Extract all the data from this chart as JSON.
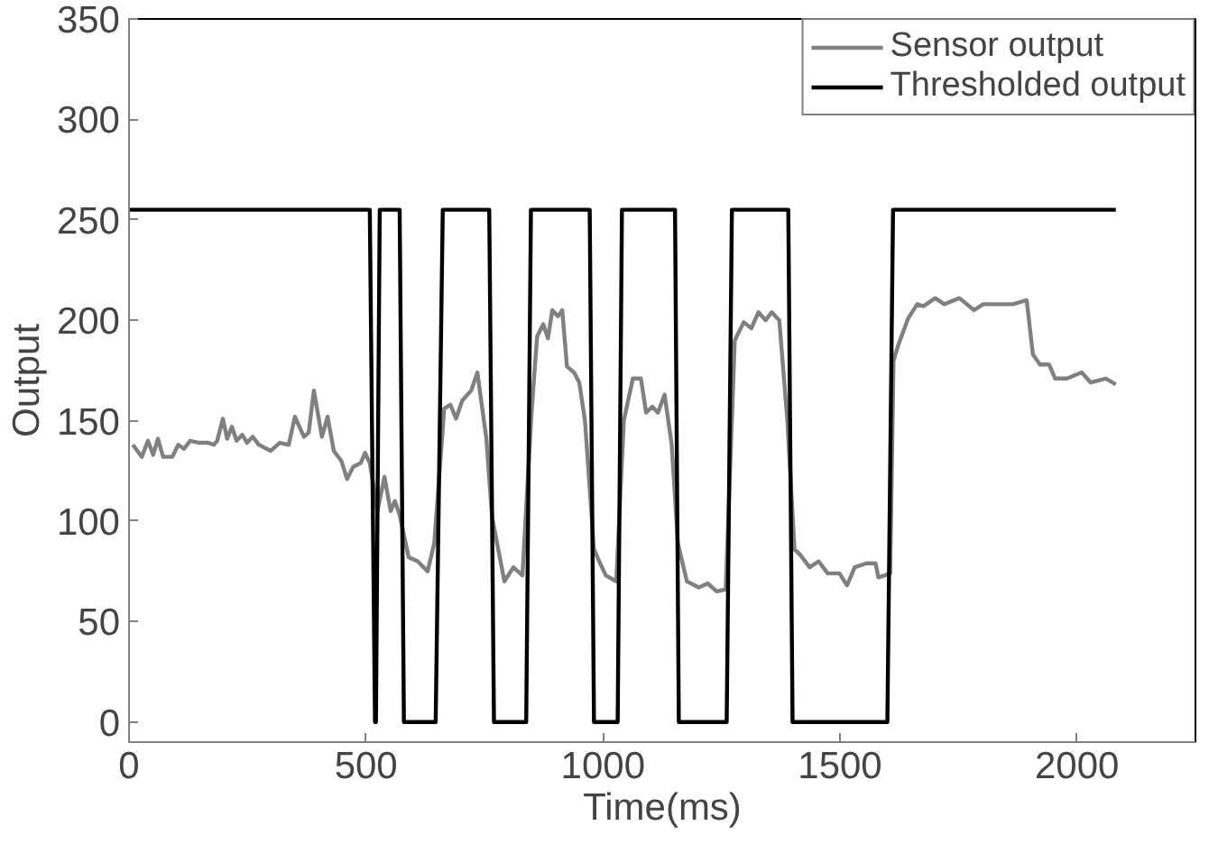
{
  "chart_data": {
    "type": "line",
    "xlabel": "Time(ms)",
    "ylabel": "Output",
    "xlim": [
      0,
      2250
    ],
    "ylim": [
      -10,
      350
    ],
    "xticks": [
      0,
      500,
      1000,
      1500,
      2000
    ],
    "yticks": [
      0,
      50,
      100,
      150,
      200,
      250,
      300,
      350
    ],
    "grid": false,
    "legend": "top right",
    "marker": "none",
    "line_style": "solid",
    "series": [
      {
        "name": "Sensor output",
        "color": "#808080",
        "x": [
          8,
          27,
          40,
          51,
          61,
          72,
          91,
          104,
          116,
          129,
          148,
          167,
          179,
          186,
          198,
          207,
          217,
          227,
          239,
          249,
          261,
          274,
          299,
          318,
          337,
          350,
          369,
          379,
          390,
          407,
          419,
          432,
          448,
          460,
          473,
          489,
          498,
          508,
          524,
          539,
          552,
          561,
          571,
          590,
          609,
          630,
          644,
          665,
          678,
          690,
          703,
          722,
          735,
          754,
          766,
          792,
          811,
          830,
          849,
          861,
          874,
          884,
          893,
          905,
          914,
          924,
          939,
          950,
          962,
          981,
          994,
          1006,
          1028,
          1044,
          1063,
          1080,
          1091,
          1104,
          1116,
          1130,
          1145,
          1158,
          1177,
          1202,
          1221,
          1240,
          1259,
          1278,
          1297,
          1313,
          1328,
          1343,
          1356,
          1372,
          1389,
          1404,
          1417,
          1436,
          1455,
          1474,
          1499,
          1515,
          1531,
          1556,
          1575,
          1581,
          1594,
          1606,
          1613,
          1625,
          1644,
          1663,
          1676,
          1701,
          1720,
          1752,
          1783,
          1802,
          1834,
          1865,
          1894,
          1907,
          1922,
          1941,
          1954,
          1979,
          2010,
          2029,
          2061,
          2082
        ],
        "values": [
          138,
          132,
          140,
          133,
          141,
          132,
          132,
          138,
          136,
          140,
          139,
          139,
          138,
          140,
          151,
          141,
          147,
          140,
          143,
          139,
          142,
          138,
          135,
          139,
          138,
          152,
          142,
          144,
          165,
          142,
          152,
          135,
          130,
          121,
          127,
          129,
          134,
          129,
          105,
          122,
          105,
          110,
          103,
          82,
          80,
          75,
          89,
          156,
          158,
          151,
          160,
          165,
          174,
          141,
          102,
          70,
          77,
          73,
          153,
          192,
          198,
          191,
          205,
          202,
          205,
          177,
          174,
          169,
          150,
          86,
          79,
          73,
          70,
          150,
          171,
          171,
          154,
          157,
          154,
          163,
          138,
          89,
          70,
          67,
          69,
          65,
          66,
          190,
          199,
          196,
          204,
          200,
          204,
          200,
          150,
          86,
          83,
          77,
          80,
          74,
          74,
          68,
          77,
          79,
          79,
          72,
          73,
          74,
          180,
          189,
          201,
          208,
          207,
          211,
          208,
          211,
          205,
          208,
          208,
          208,
          210,
          183,
          178,
          178,
          171,
          171,
          174,
          169,
          171,
          168
        ]
      },
      {
        "name": "Thresholded output",
        "color": "#000000",
        "x": [
          0,
          508,
          519,
          521,
          529,
          571,
          580,
          647,
          662,
          760,
          770,
          838,
          848,
          972,
          981,
          1031,
          1040,
          1152,
          1160,
          1261,
          1272,
          1391,
          1400,
          1600,
          1612,
          2082
        ],
        "values": [
          255,
          255,
          0,
          0,
          255,
          255,
          0,
          0,
          255,
          255,
          0,
          0,
          255,
          255,
          0,
          0,
          255,
          255,
          0,
          0,
          255,
          255,
          0,
          0,
          255,
          255
        ]
      }
    ]
  }
}
